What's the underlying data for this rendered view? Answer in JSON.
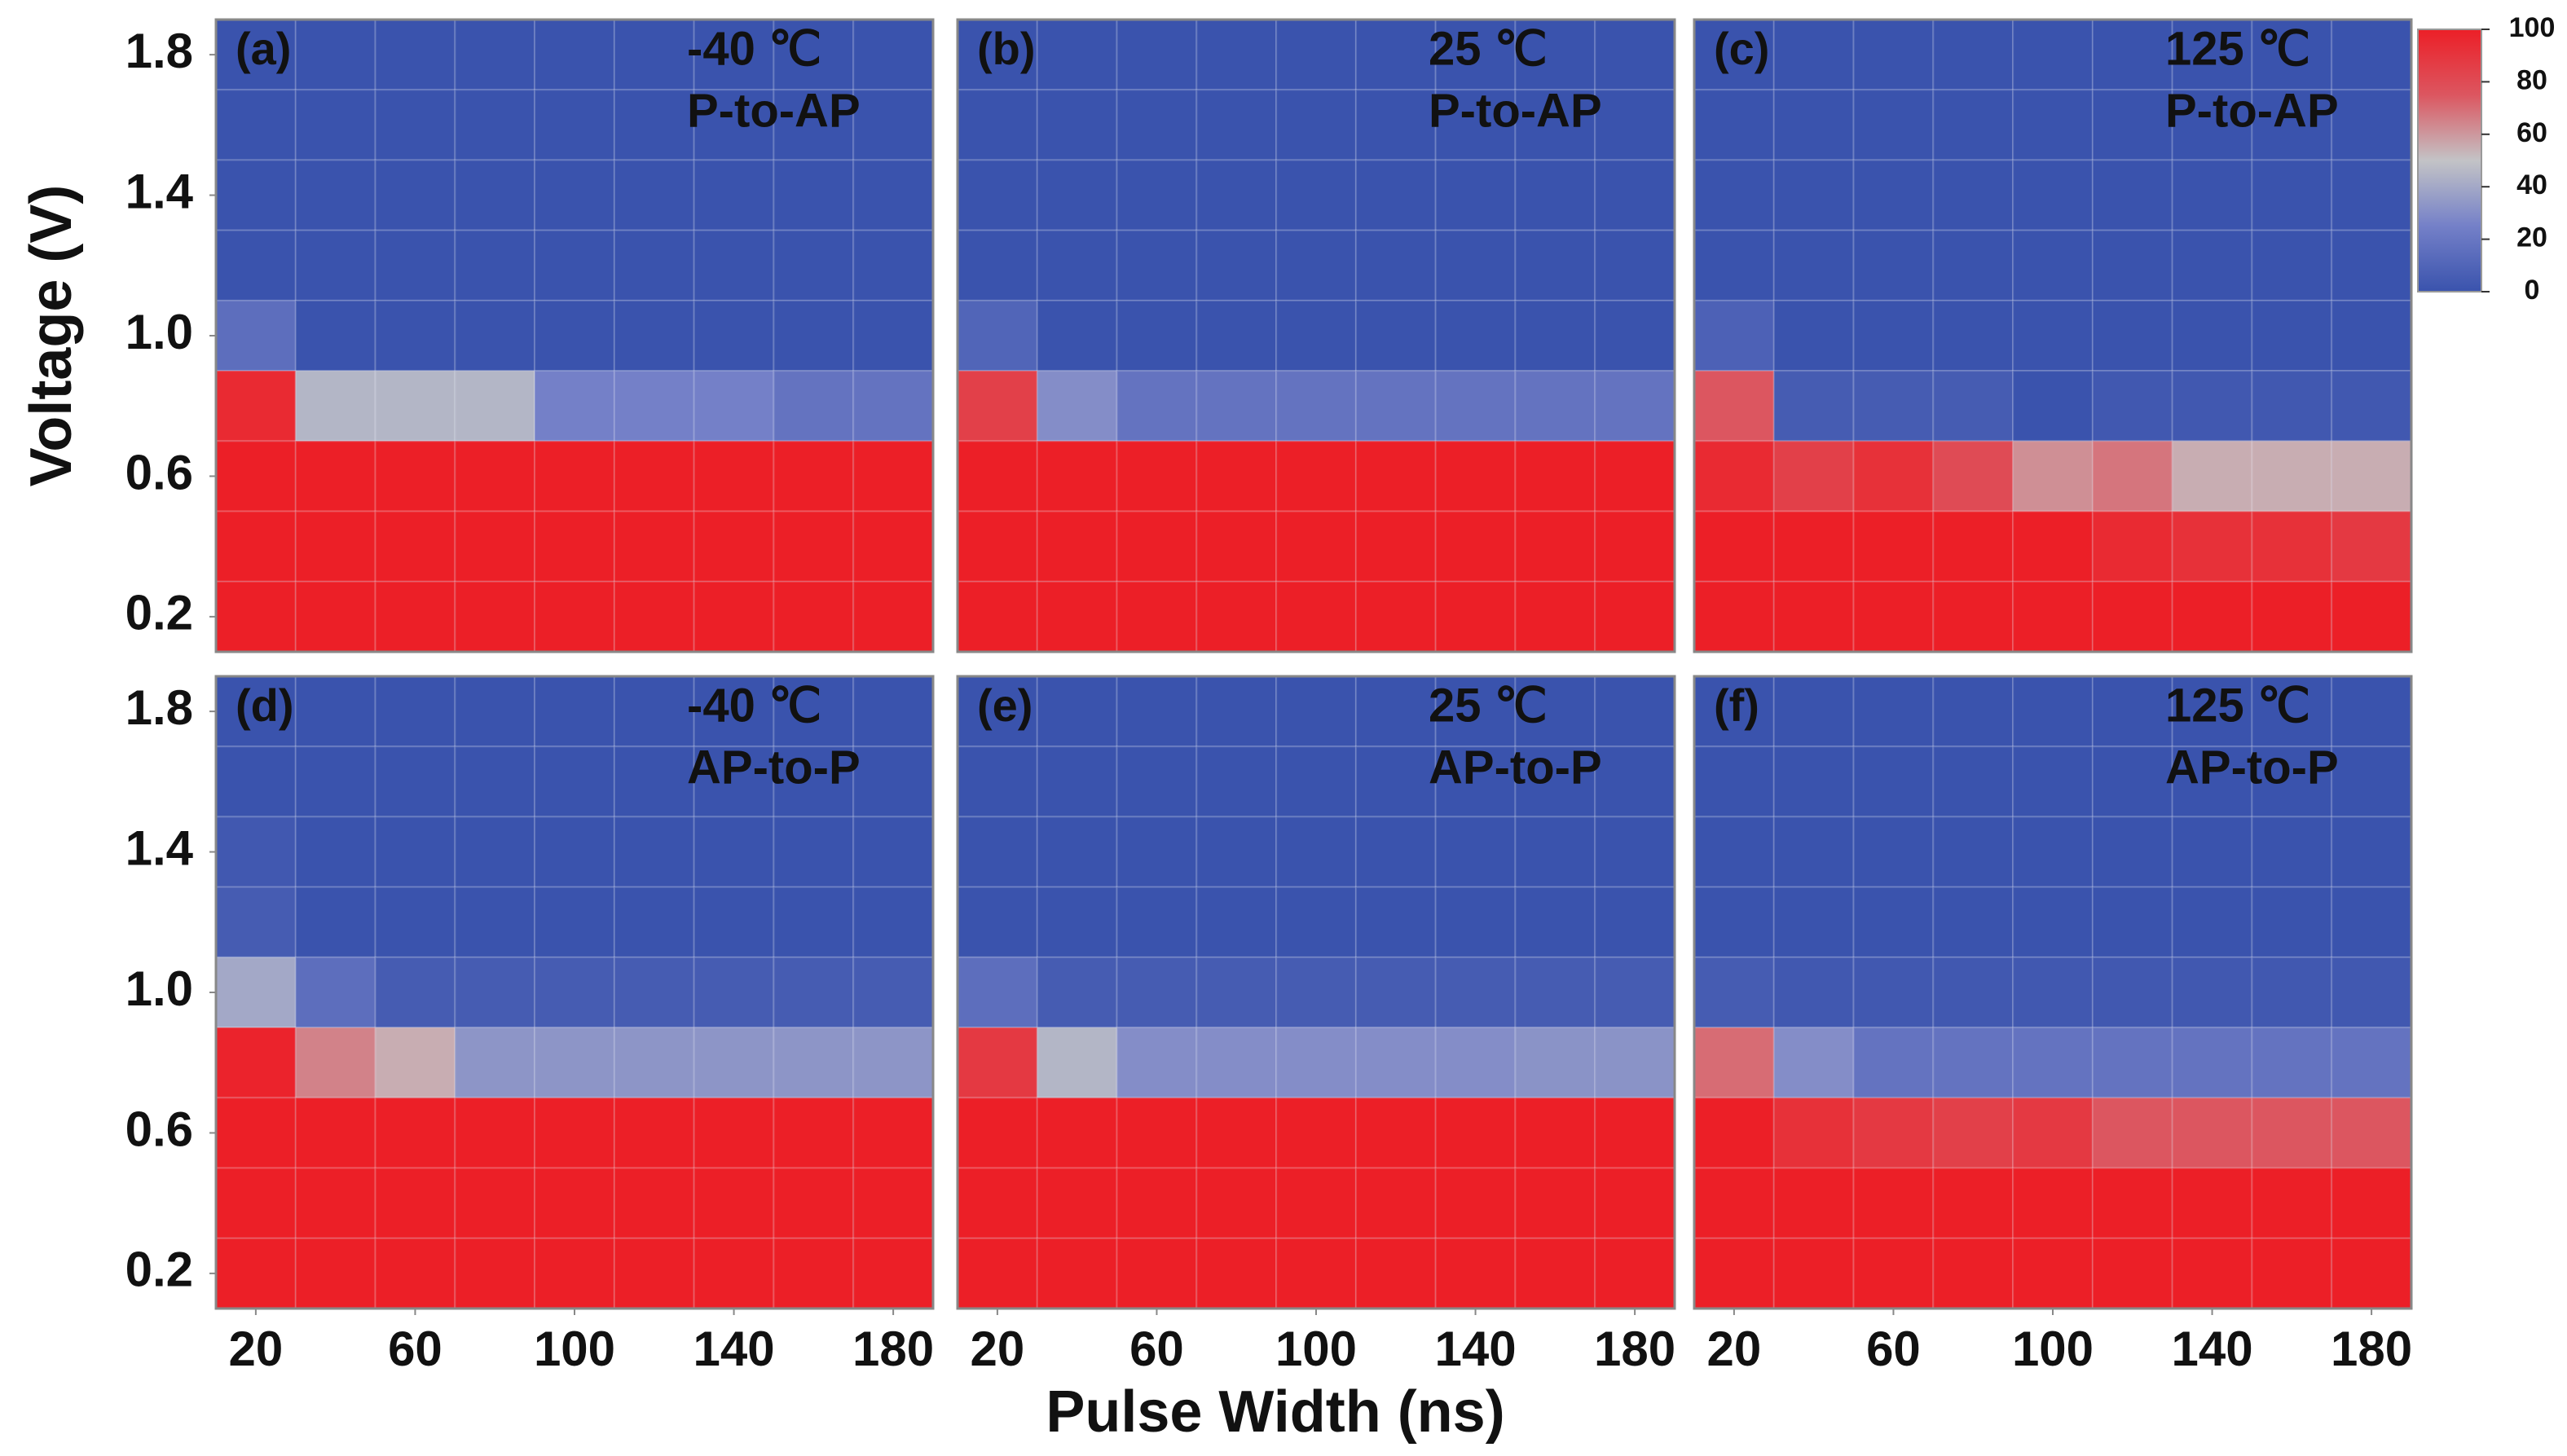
{
  "chart_data": [
    {
      "type": "heatmap",
      "panel_label": "(a)",
      "temperature": "-40 ℃",
      "mode": "P-to-AP",
      "x": [
        20,
        40,
        60,
        80,
        100,
        120,
        140,
        160,
        180
      ],
      "y": [
        1.8,
        1.6,
        1.4,
        1.2,
        1.0,
        0.8,
        0.6,
        0.4,
        0.2
      ],
      "xlim": [
        10,
        190
      ],
      "ylim": [
        0.1,
        1.9
      ],
      "yticks": [
        {
          "value": 1.8,
          "label": "1.8"
        },
        {
          "value": 1.4,
          "label": "1.4"
        },
        {
          "value": 1.0,
          "label": "1.0"
        },
        {
          "value": 0.6,
          "label": "0.6"
        },
        {
          "value": 0.2,
          "label": "0.2"
        }
      ],
      "z": [
        [
          0,
          0,
          0,
          0,
          0,
          0,
          0,
          0,
          0
        ],
        [
          0,
          0,
          0,
          0,
          0,
          0,
          0,
          0,
          0
        ],
        [
          0,
          0,
          0,
          0,
          0,
          0,
          0,
          0,
          0
        ],
        [
          0,
          0,
          0,
          0,
          0,
          0,
          0,
          0,
          0
        ],
        [
          15,
          0,
          0,
          0,
          0,
          0,
          0,
          0,
          0
        ],
        [
          95,
          45,
          45,
          45,
          25,
          25,
          25,
          18,
          18
        ],
        [
          100,
          100,
          100,
          100,
          100,
          100,
          100,
          100,
          100
        ],
        [
          100,
          100,
          100,
          100,
          100,
          100,
          100,
          100,
          100
        ],
        [
          100,
          100,
          100,
          100,
          100,
          100,
          100,
          100,
          100
        ]
      ]
    },
    {
      "type": "heatmap",
      "panel_label": "(b)",
      "temperature": "25 ℃",
      "mode": "P-to-AP",
      "x": [
        20,
        40,
        60,
        80,
        100,
        120,
        140,
        160,
        180
      ],
      "y": [
        1.8,
        1.6,
        1.4,
        1.2,
        1.0,
        0.8,
        0.6,
        0.4,
        0.2
      ],
      "xlim": [
        10,
        190
      ],
      "ylim": [
        0.1,
        1.9
      ],
      "z": [
        [
          0,
          0,
          0,
          0,
          0,
          0,
          0,
          0,
          0
        ],
        [
          0,
          0,
          0,
          0,
          0,
          0,
          0,
          0,
          0
        ],
        [
          0,
          0,
          0,
          0,
          0,
          0,
          0,
          0,
          0
        ],
        [
          0,
          0,
          0,
          0,
          0,
          0,
          0,
          0,
          0
        ],
        [
          10,
          0,
          0,
          0,
          0,
          0,
          0,
          0,
          0
        ],
        [
          85,
          30,
          18,
          18,
          18,
          18,
          18,
          18,
          18
        ],
        [
          100,
          100,
          100,
          100,
          100,
          100,
          100,
          100,
          100
        ],
        [
          100,
          100,
          100,
          100,
          100,
          100,
          100,
          100,
          100
        ],
        [
          100,
          100,
          100,
          100,
          100,
          100,
          100,
          100,
          100
        ]
      ]
    },
    {
      "type": "heatmap",
      "panel_label": "(c)",
      "temperature": "125 ℃",
      "mode": "P-to-AP",
      "x": [
        20,
        40,
        60,
        80,
        100,
        120,
        140,
        160,
        180
      ],
      "y": [
        1.8,
        1.6,
        1.4,
        1.2,
        1.0,
        0.8,
        0.6,
        0.4,
        0.2
      ],
      "xlim": [
        10,
        190
      ],
      "ylim": [
        0.1,
        1.9
      ],
      "z": [
        [
          0,
          0,
          0,
          0,
          0,
          0,
          0,
          0,
          0
        ],
        [
          0,
          0,
          0,
          0,
          0,
          0,
          0,
          0,
          0
        ],
        [
          0,
          0,
          0,
          0,
          0,
          0,
          0,
          0,
          0
        ],
        [
          0,
          0,
          0,
          0,
          0,
          0,
          0,
          0,
          0
        ],
        [
          8,
          0,
          0,
          0,
          0,
          0,
          0,
          0,
          0
        ],
        [
          75,
          5,
          5,
          5,
          0,
          3,
          3,
          3,
          3
        ],
        [
          95,
          85,
          92,
          80,
          62,
          68,
          55,
          55,
          55
        ],
        [
          100,
          100,
          100,
          100,
          100,
          95,
          92,
          92,
          88
        ],
        [
          100,
          100,
          100,
          100,
          100,
          100,
          100,
          100,
          100
        ]
      ]
    },
    {
      "type": "heatmap",
      "panel_label": "(d)",
      "temperature": "-40 ℃",
      "mode": "AP-to-P",
      "x": [
        20,
        40,
        60,
        80,
        100,
        120,
        140,
        160,
        180
      ],
      "y": [
        1.8,
        1.6,
        1.4,
        1.2,
        1.0,
        0.8,
        0.6,
        0.4,
        0.2
      ],
      "xlim": [
        10,
        190
      ],
      "ylim": [
        0.1,
        1.9
      ],
      "xticks": [
        20,
        60,
        100,
        140,
        180
      ],
      "yticks": [
        {
          "value": 1.8,
          "label": "1.8"
        },
        {
          "value": 1.4,
          "label": "1.4"
        },
        {
          "value": 1.0,
          "label": "1.0"
        },
        {
          "value": 0.6,
          "label": "0.6"
        },
        {
          "value": 0.2,
          "label": "0.2"
        }
      ],
      "z": [
        [
          0,
          0,
          0,
          0,
          0,
          0,
          0,
          0,
          0
        ],
        [
          0,
          0,
          0,
          0,
          0,
          0,
          0,
          0,
          0
        ],
        [
          3,
          0,
          0,
          0,
          0,
          0,
          0,
          0,
          0
        ],
        [
          5,
          0,
          0,
          0,
          0,
          0,
          0,
          0,
          0
        ],
        [
          40,
          15,
          5,
          5,
          5,
          5,
          5,
          5,
          5
        ],
        [
          98,
          65,
          55,
          33,
          33,
          33,
          33,
          33,
          33
        ],
        [
          100,
          100,
          100,
          100,
          100,
          100,
          100,
          100,
          100
        ],
        [
          100,
          100,
          100,
          100,
          100,
          100,
          100,
          100,
          100
        ],
        [
          100,
          100,
          100,
          100,
          100,
          100,
          100,
          100,
          100
        ]
      ]
    },
    {
      "type": "heatmap",
      "panel_label": "(e)",
      "temperature": "25 ℃",
      "mode": "AP-to-P",
      "x": [
        20,
        40,
        60,
        80,
        100,
        120,
        140,
        160,
        180
      ],
      "y": [
        1.8,
        1.6,
        1.4,
        1.2,
        1.0,
        0.8,
        0.6,
        0.4,
        0.2
      ],
      "xlim": [
        10,
        190
      ],
      "ylim": [
        0.1,
        1.9
      ],
      "xticks": [
        20,
        60,
        100,
        140,
        180
      ],
      "z": [
        [
          0,
          0,
          0,
          0,
          0,
          0,
          0,
          0,
          0
        ],
        [
          0,
          0,
          0,
          0,
          0,
          0,
          0,
          0,
          0
        ],
        [
          0,
          0,
          0,
          0,
          0,
          0,
          0,
          0,
          0
        ],
        [
          0,
          0,
          0,
          0,
          0,
          0,
          0,
          0,
          0
        ],
        [
          15,
          5,
          5,
          5,
          5,
          5,
          5,
          5,
          5
        ],
        [
          88,
          45,
          30,
          30,
          30,
          30,
          30,
          32,
          32
        ],
        [
          100,
          100,
          100,
          100,
          100,
          100,
          100,
          100,
          100
        ],
        [
          100,
          100,
          100,
          100,
          100,
          100,
          100,
          100,
          100
        ],
        [
          100,
          100,
          100,
          100,
          100,
          100,
          100,
          100,
          100
        ]
      ]
    },
    {
      "type": "heatmap",
      "panel_label": "(f)",
      "temperature": "125 ℃",
      "mode": "AP-to-P",
      "x": [
        20,
        40,
        60,
        80,
        100,
        120,
        140,
        160,
        180
      ],
      "y": [
        1.8,
        1.6,
        1.4,
        1.2,
        1.0,
        0.8,
        0.6,
        0.4,
        0.2
      ],
      "xlim": [
        10,
        190
      ],
      "ylim": [
        0.1,
        1.9
      ],
      "xticks": [
        20,
        60,
        100,
        140,
        180
      ],
      "z": [
        [
          0,
          0,
          0,
          0,
          0,
          0,
          0,
          0,
          0
        ],
        [
          0,
          0,
          0,
          0,
          0,
          0,
          0,
          0,
          0
        ],
        [
          0,
          0,
          0,
          0,
          0,
          0,
          0,
          0,
          0
        ],
        [
          0,
          0,
          0,
          0,
          0,
          0,
          0,
          0,
          0
        ],
        [
          5,
          3,
          3,
          3,
          3,
          3,
          3,
          3,
          3
        ],
        [
          70,
          30,
          18,
          18,
          18,
          18,
          18,
          18,
          18
        ],
        [
          100,
          92,
          88,
          85,
          88,
          75,
          75,
          75,
          75
        ],
        [
          100,
          100,
          100,
          100,
          100,
          100,
          100,
          100,
          100
        ],
        [
          100,
          100,
          100,
          100,
          100,
          100,
          100,
          100,
          100
        ]
      ]
    }
  ],
  "xlabel": "Pulse Width (ns)",
  "ylabel": "Voltage (V)",
  "colorbar": {
    "zlim": [
      0,
      100
    ],
    "ticks": [
      0,
      20,
      40,
      60,
      80,
      100
    ],
    "colors": [
      "#3a53ad",
      "#7480c8",
      "#c3c3c6",
      "#dc5660",
      "#ec1f27"
    ]
  }
}
